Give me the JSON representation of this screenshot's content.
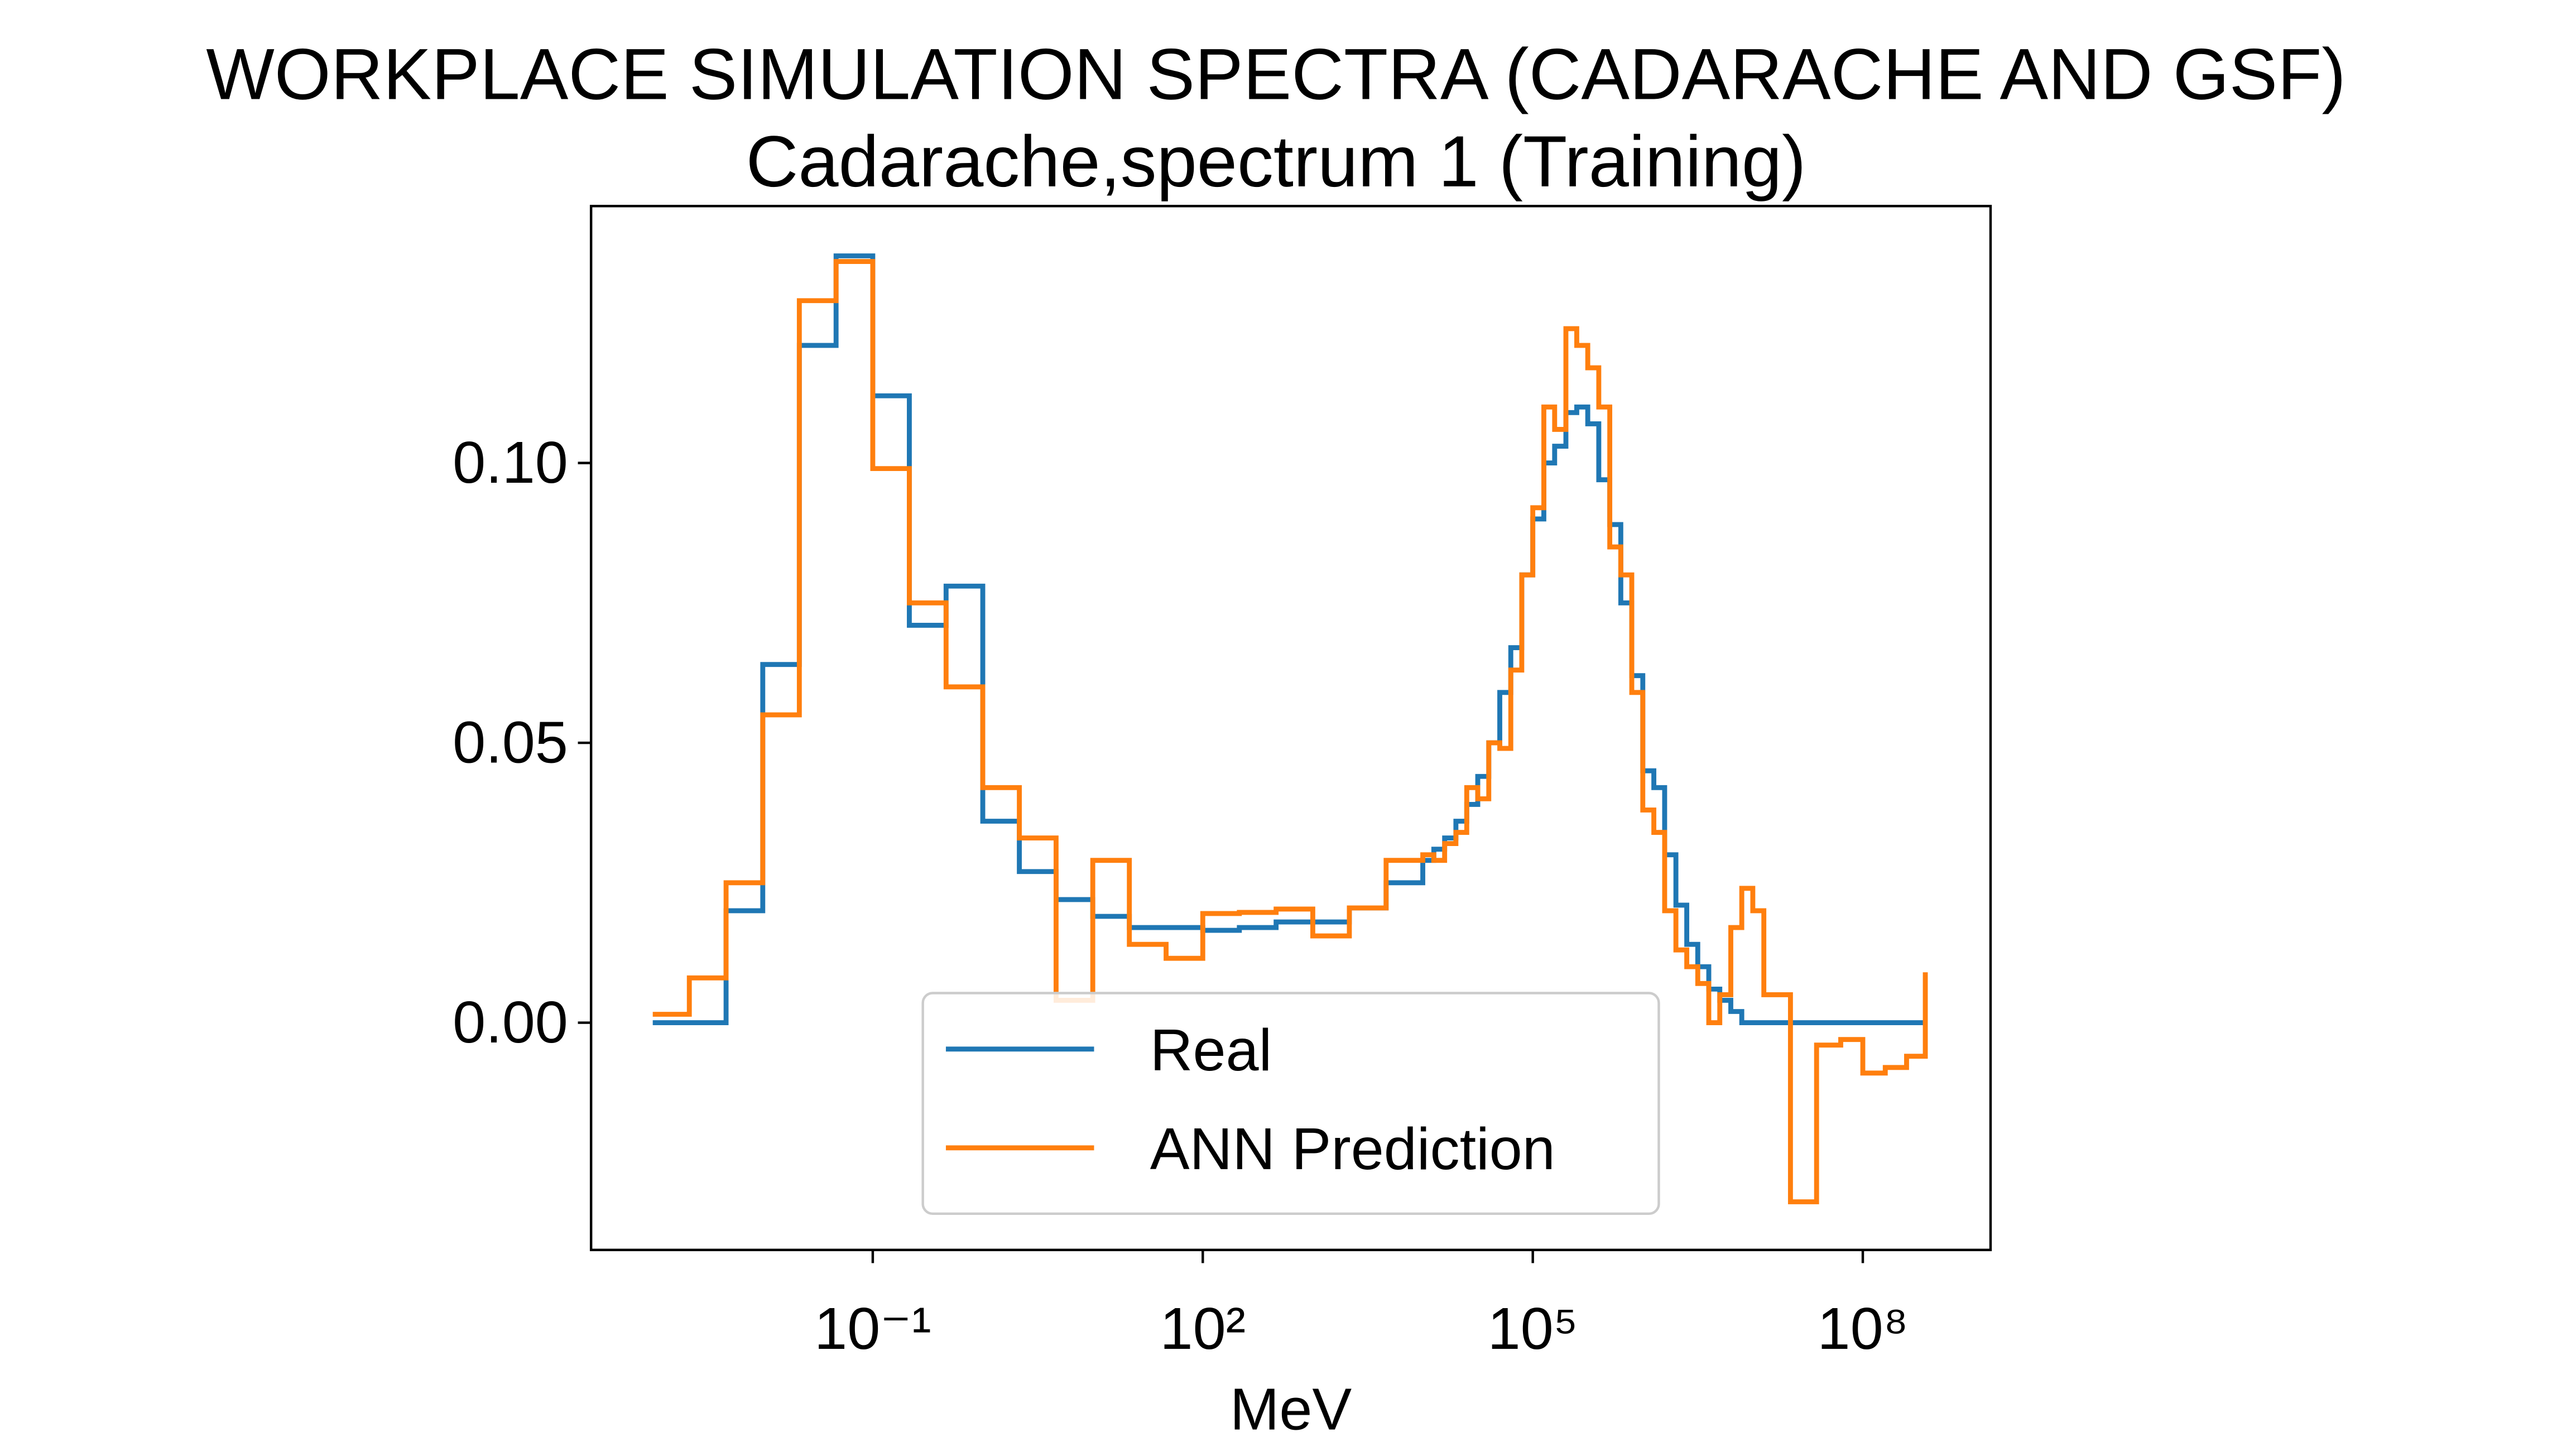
{
  "chart_data": {
    "type": "step",
    "title": "WORKPLACE SIMULATION SPECTRA (CADARACHE AND GSF)",
    "subtitle": "Cadarache,spectrum 1 (Training)",
    "x_label": "MeV",
    "x_scale": "log",
    "legend": "lower center",
    "x": [
      0.001,
      0.00215,
      0.00464,
      0.01,
      0.0215,
      0.0464,
      0.1,
      0.215,
      0.464,
      1,
      2.15,
      4.64,
      10,
      21.5,
      46.4,
      100,
      215,
      464,
      1000,
      2150,
      4640,
      10000,
      12600,
      15800,
      20000,
      25100,
      31600,
      39800,
      50100,
      63100,
      79400,
      100000,
      126000,
      158000,
      200000,
      251000,
      316000,
      398000,
      501000,
      631000,
      794000,
      1000000,
      1260000,
      1580000,
      2000000,
      2510000,
      3160000,
      3980000,
      5010000,
      6310000,
      7940000,
      10000000,
      12600000,
      22000000,
      38000000,
      63000000,
      100000000,
      160000000,
      250000000,
      370000000
    ],
    "series": [
      {
        "name": "Real",
        "color": "#1f77b4",
        "values": [
          0,
          0,
          0.02,
          0.064,
          0.121,
          0.137,
          0.112,
          0.071,
          0.078,
          0.036,
          0.027,
          0.022,
          0.019,
          0.017,
          0.017,
          0.0165,
          0.017,
          0.018,
          0.018,
          0.0205,
          0.025,
          0.029,
          0.031,
          0.033,
          0.036,
          0.039,
          0.044,
          0.05,
          0.059,
          0.067,
          0.08,
          0.09,
          0.1,
          0.103,
          0.109,
          0.11,
          0.107,
          0.097,
          0.089,
          0.075,
          0.062,
          0.045,
          0.042,
          0.03,
          0.021,
          0.014,
          0.01,
          0.006,
          0.004,
          0.002,
          0,
          0,
          0,
          0,
          0,
          0,
          0,
          0,
          0,
          0
        ]
      },
      {
        "name": "ANN Prediction",
        "color": "#ff7f0e",
        "values": [
          0.0015,
          0.008,
          0.025,
          0.055,
          0.129,
          0.136,
          0.099,
          0.075,
          0.06,
          0.042,
          0.033,
          0.004,
          0.029,
          0.014,
          0.0115,
          0.0195,
          0.0197,
          0.0203,
          0.0155,
          0.0205,
          0.029,
          0.03,
          0.029,
          0.032,
          0.034,
          0.042,
          0.04,
          0.05,
          0.049,
          0.063,
          0.08,
          0.092,
          0.11,
          0.106,
          0.124,
          0.121,
          0.117,
          0.11,
          0.085,
          0.08,
          0.059,
          0.038,
          0.034,
          0.02,
          0.013,
          0.01,
          0.007,
          0,
          0.005,
          0.017,
          0.024,
          0.02,
          0.005,
          -0.032,
          -0.004,
          -0.003,
          -0.009,
          -0.008,
          -0.006,
          0.009
        ]
      }
    ],
    "xlim": [
      0.000275,
      1450000000
    ],
    "ylim": [
      -0.0406,
      0.1459
    ],
    "xticks": [
      {
        "value": 0.1,
        "label": "10⁻¹"
      },
      {
        "value": 100,
        "label": "10²"
      },
      {
        "value": 100000,
        "label": "10⁵"
      },
      {
        "value": 100000000,
        "label": "10⁸"
      }
    ],
    "yticks": [
      {
        "value": 0,
        "label": "0.00"
      },
      {
        "value": 0.05,
        "label": "0.05"
      },
      {
        "value": 0.1,
        "label": "0.10"
      }
    ]
  }
}
